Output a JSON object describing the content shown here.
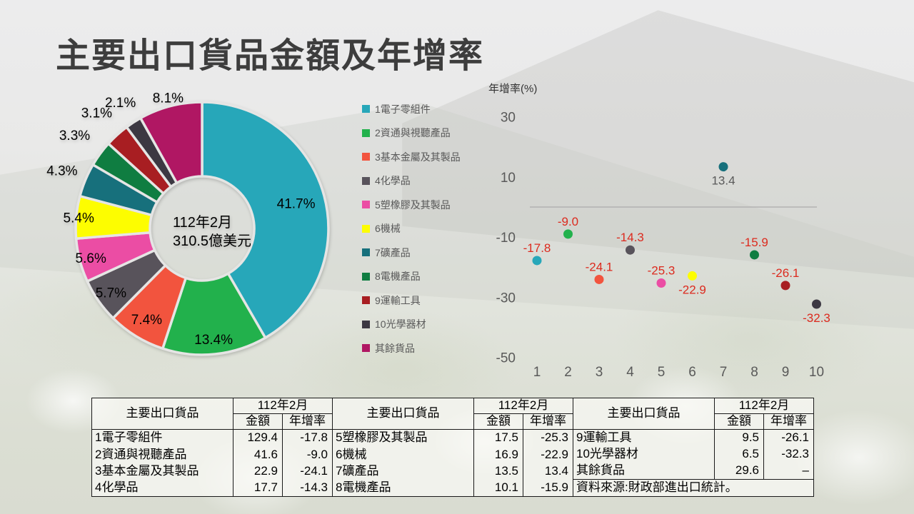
{
  "slide": {
    "title": "主要出口貨品金額及年增率"
  },
  "colors": {
    "palette": [
      "#27A7B9",
      "#22B14C",
      "#F2543E",
      "#58535B",
      "#EB4DA4",
      "#FDFD00",
      "#17707C",
      "#0F7D41",
      "#A81E22",
      "#3C3842",
      "#B01763"
    ],
    "slice_gap": "#E5E5E4",
    "axis_text": "#595959",
    "label_negative": "#DC2A1E",
    "label_positive": "#595959",
    "zero_line": "#ABABAB",
    "title_text": "#3D3D3D"
  },
  "chart_data": [
    {
      "type": "pie",
      "subtype": "donut",
      "center_label": [
        "112年2月",
        "310.5億美元"
      ],
      "categories": [
        "1電子零組件",
        "2資通與視聽產品",
        "3基本金屬及其製品",
        "4化學品",
        "5塑橡膠及其製品",
        "6機械",
        "7礦產品",
        "8電機產品",
        "9運輸工具",
        "10光學器材",
        "其餘貨品"
      ],
      "values": [
        41.7,
        13.4,
        7.4,
        5.7,
        5.6,
        5.4,
        4.3,
        3.3,
        3.1,
        2.1,
        8.1
      ],
      "labels": [
        "41.7%",
        "13.4%",
        "7.4%",
        "5.7%",
        "5.6%",
        "5.4%",
        "4.3%",
        "3.3%",
        "3.1%",
        "2.1%",
        "8.1%"
      ],
      "colors": [
        "#27A7B9",
        "#22B14C",
        "#F2543E",
        "#58535B",
        "#EB4DA4",
        "#FDFD00",
        "#17707C",
        "#0F7D41",
        "#A81E22",
        "#3C3842",
        "#B01763"
      ],
      "legend": [
        "1電子零組件",
        "2資通與視聽產品",
        "3基本金屬及其製品",
        "4化學品",
        "5塑橡膠及其製品",
        "6機械",
        "7礦產品",
        "8電機產品",
        "9運輸工具",
        "10光學器材",
        "其餘貨品"
      ],
      "legend_position": "right"
    },
    {
      "type": "scatter",
      "title": "年增率(%)",
      "x": [
        1,
        2,
        3,
        4,
        5,
        6,
        7,
        8,
        9,
        10
      ],
      "y": [
        -17.8,
        -9.0,
        -24.1,
        -14.3,
        -25.3,
        -22.9,
        13.4,
        -15.9,
        -26.1,
        -32.3
      ],
      "point_labels": [
        "-17.8",
        "-9.0",
        "-24.1",
        "-14.3",
        "-25.3",
        "-22.9",
        "13.4",
        "-15.9",
        "-26.1",
        "-32.3"
      ],
      "colors": [
        "#27A7B9",
        "#22B14C",
        "#F2543E",
        "#58535B",
        "#EB4DA4",
        "#FDFD00",
        "#17707C",
        "#0F7D41",
        "#A81E22",
        "#3C3842"
      ],
      "xticks": [
        1,
        2,
        3,
        4,
        5,
        6,
        7,
        8,
        9,
        10
      ],
      "yticks": [
        30,
        10,
        -10,
        -30,
        -50
      ],
      "ylim": [
        -55,
        40
      ],
      "zero_line": true,
      "grid": false,
      "labels_below_x": [
        6,
        7,
        10
      ]
    },
    {
      "type": "table",
      "header": {
        "product": "主要出口貨品",
        "period": "112年2月",
        "sub": [
          "金額",
          "年增率"
        ]
      },
      "rows": [
        [
          "1電子零組件",
          "129.4",
          "-17.8"
        ],
        [
          "2資通與視聽產品",
          "41.6",
          "-9.0"
        ],
        [
          "3基本金屬及其製品",
          "22.9",
          "-24.1"
        ],
        [
          "4化學品",
          "17.7",
          "-14.3"
        ]
      ]
    },
    {
      "type": "table",
      "header": {
        "product": "主要出口貨品",
        "period": "112年2月",
        "sub": [
          "金額",
          "年增率"
        ]
      },
      "rows": [
        [
          "5塑橡膠及其製品",
          "17.5",
          "-25.3"
        ],
        [
          "6機械",
          "16.9",
          "-22.9"
        ],
        [
          "7礦產品",
          "13.5",
          "13.4"
        ],
        [
          "8電機產品",
          "10.1",
          "-15.9"
        ]
      ]
    },
    {
      "type": "table",
      "header": {
        "product": "主要出口貨品",
        "period": "112年2月",
        "sub": [
          "金額",
          "年增率"
        ]
      },
      "rows": [
        [
          "9運輸工具",
          "9.5",
          "-26.1"
        ],
        [
          "10光學器材",
          "6.5",
          "-32.3"
        ],
        [
          "其餘貨品",
          "29.6",
          "–"
        ]
      ],
      "footer": "資料來源:財政部進出口統計。"
    }
  ]
}
